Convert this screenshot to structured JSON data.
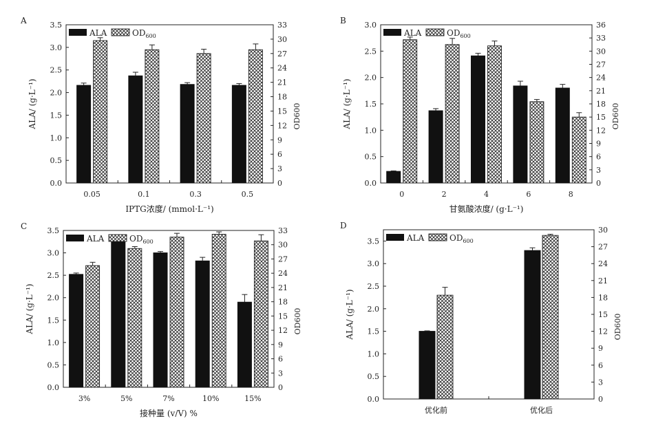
{
  "figure": {
    "panels": [
      "A",
      "B",
      "C",
      "D"
    ]
  },
  "legend": {
    "series1": "ALA",
    "series2": "OD",
    "series2_sub": "600"
  },
  "chart_data": [
    {
      "id": "A",
      "type": "bar",
      "categories": [
        "0.05",
        "0.1",
        "0.3",
        "0.5"
      ],
      "xlabel": "IPTG浓度/ (mmol·L⁻¹)",
      "ylabel_left": "ALA/ (g·L⁻¹)",
      "ylabel_right": "OD600",
      "ylim_left": [
        0,
        3.5
      ],
      "yticks_left": [
        "0.0",
        "0.5",
        "1.0",
        "1.5",
        "2.0",
        "2.5",
        "3.0",
        "3.5"
      ],
      "ylim_right": [
        0,
        33
      ],
      "yticks_right": [
        "0",
        "3",
        "6",
        "9",
        "12",
        "15",
        "18",
        "21",
        "24",
        "27",
        "30",
        "33"
      ],
      "series": [
        {
          "name": "ALA",
          "axis": "left",
          "values": [
            2.16,
            2.37,
            2.18,
            2.16
          ],
          "errors": [
            0.05,
            0.08,
            0.04,
            0.04
          ]
        },
        {
          "name": "OD600",
          "axis": "right",
          "values": [
            29.7,
            27.8,
            27.0,
            27.8
          ],
          "errors": [
            0.6,
            1.0,
            0.9,
            1.2
          ]
        }
      ]
    },
    {
      "id": "B",
      "type": "bar",
      "categories": [
        "0",
        "2",
        "4",
        "6",
        "8"
      ],
      "xlabel": "甘氨酸浓度/ (g·L⁻¹)",
      "ylabel_left": "ALA/ (g·L⁻¹)",
      "ylabel_right": "OD600",
      "ylim_left": [
        0,
        3.0
      ],
      "yticks_left": [
        "0.0",
        "0.5",
        "1.0",
        "1.5",
        "2.0",
        "2.5",
        "3.0"
      ],
      "ylim_right": [
        0,
        36
      ],
      "yticks_right": [
        "0",
        "3",
        "6",
        "9",
        "12",
        "15",
        "18",
        "21",
        "24",
        "27",
        "30",
        "33",
        "36"
      ],
      "series": [
        {
          "name": "ALA",
          "axis": "left",
          "values": [
            0.22,
            1.37,
            2.41,
            1.84,
            1.8
          ],
          "errors": [
            0.01,
            0.04,
            0.05,
            0.09,
            0.07
          ]
        },
        {
          "name": "OD600",
          "axis": "right",
          "values": [
            32.6,
            31.5,
            31.2,
            18.5,
            15.0
          ],
          "errors": [
            0.6,
            1.4,
            1.1,
            0.5,
            1.0
          ]
        }
      ]
    },
    {
      "id": "C",
      "type": "bar",
      "categories": [
        "3%",
        "5%",
        "7%",
        "10%",
        "15%"
      ],
      "xlabel": "接种量 (v/V) %",
      "ylabel_left": "ALA/ (g·L⁻¹)",
      "ylabel_right": "OD600",
      "ylim_left": [
        0,
        3.5
      ],
      "yticks_left": [
        "0.0",
        "0.5",
        "1.0",
        "1.5",
        "2.0",
        "2.5",
        "3.0",
        "3.5"
      ],
      "ylim_right": [
        0,
        33
      ],
      "yticks_right": [
        "0",
        "3",
        "6",
        "9",
        "12",
        "15",
        "18",
        "21",
        "24",
        "27",
        "30",
        "33"
      ],
      "series": [
        {
          "name": "ALA",
          "axis": "left",
          "values": [
            2.52,
            3.27,
            3.0,
            2.82,
            1.9
          ],
          "errors": [
            0.03,
            0.09,
            0.03,
            0.08,
            0.17
          ]
        },
        {
          "name": "OD600",
          "axis": "right",
          "values": [
            25.6,
            29.2,
            31.6,
            32.2,
            30.8
          ],
          "errors": [
            0.7,
            0.4,
            0.8,
            0.5,
            1.3
          ]
        }
      ]
    },
    {
      "id": "D",
      "type": "bar",
      "categories": [
        "优化前",
        "优化后"
      ],
      "xlabel": "",
      "ylabel_left": "ALA/ (g·L⁻¹)",
      "ylabel_right": "OD600",
      "ylim_left": [
        0,
        3.75
      ],
      "yticks_left": [
        "0.0",
        "0.5",
        "1.0",
        "1.5",
        "2.0",
        "2.5",
        "3.0",
        "3.5"
      ],
      "ylim_right": [
        0,
        30
      ],
      "yticks_right": [
        "0",
        "3",
        "6",
        "9",
        "12",
        "15",
        "18",
        "21",
        "24",
        "27",
        "30"
      ],
      "series": [
        {
          "name": "ALA",
          "axis": "left",
          "values": [
            1.5,
            3.29
          ],
          "errors": [
            0.01,
            0.06
          ]
        },
        {
          "name": "OD600",
          "axis": "right",
          "values": [
            18.4,
            29.0
          ],
          "errors": [
            1.4,
            0.2
          ]
        }
      ]
    }
  ]
}
